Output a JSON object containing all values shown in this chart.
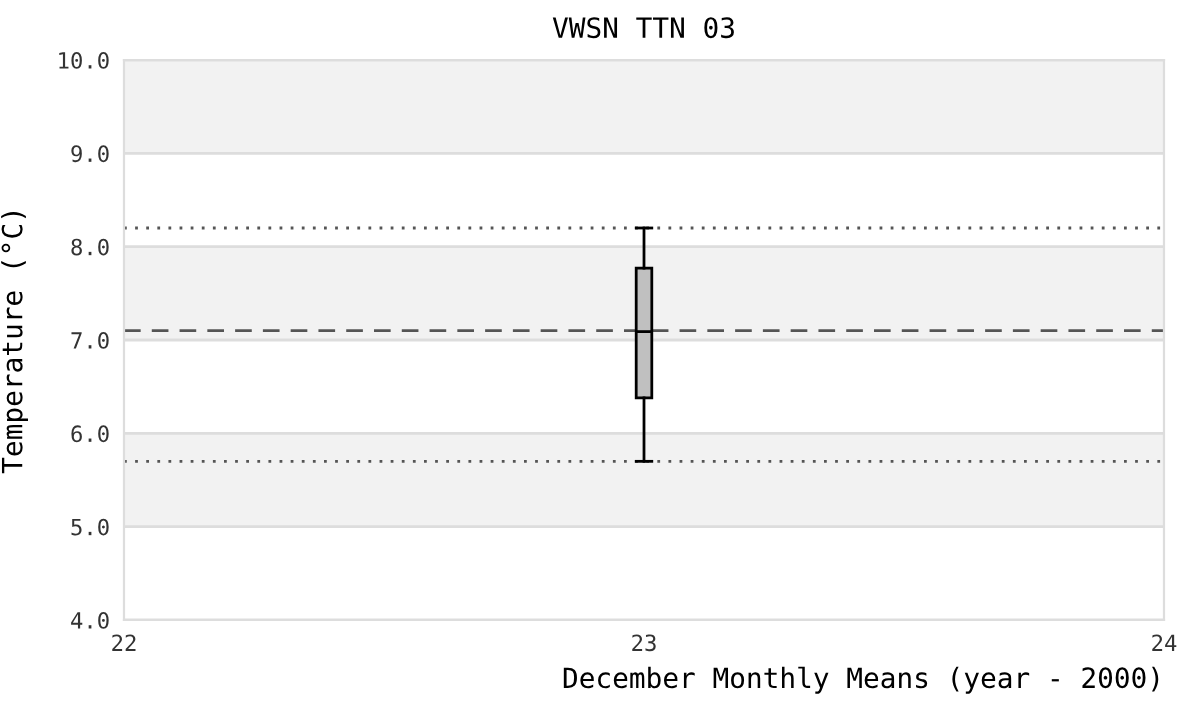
{
  "chart_data": {
    "type": "box",
    "title": "VWSN TTN 03",
    "xlabel": "December Monthly Means (year - 2000)",
    "ylabel": "Temperature (°C)",
    "x": [
      23
    ],
    "boxes": [
      {
        "low": 5.7,
        "q1": 6.38,
        "median": 7.09,
        "q3": 7.77,
        "high": 8.2
      }
    ],
    "color": "#c0c0c0",
    "xlim": [
      22,
      24
    ],
    "xticks": [
      22,
      23,
      24
    ],
    "ylim": [
      4.0,
      10.0
    ],
    "yticks": [
      {
        "value": 4,
        "label": "4.0"
      },
      {
        "value": 5,
        "label": "5.0"
      },
      {
        "value": 6,
        "label": "6.0"
      },
      {
        "value": 7,
        "label": "7.0"
      },
      {
        "value": 8,
        "label": "8.0"
      },
      {
        "value": 9,
        "label": "9.0"
      },
      {
        "value": 10,
        "label": "10.0"
      }
    ],
    "grid": "y",
    "bands": [
      {
        "axis": "y",
        "from": 5,
        "to": 6,
        "color": "#f2f2f2"
      },
      {
        "axis": "y",
        "from": 7,
        "to": 8,
        "color": "#f2f2f2"
      },
      {
        "axis": "y",
        "from": 9,
        "to": 10,
        "color": "#f2f2f2"
      }
    ],
    "ref_lines": [
      {
        "axis": "y",
        "value": 8.2,
        "line_style": "dotted",
        "color": "#555555"
      },
      {
        "axis": "y",
        "value": 7.1,
        "line_style": "dashed",
        "color": "#555555"
      },
      {
        "axis": "y",
        "value": 5.7,
        "line_style": "dotted",
        "color": "#555555"
      }
    ]
  }
}
